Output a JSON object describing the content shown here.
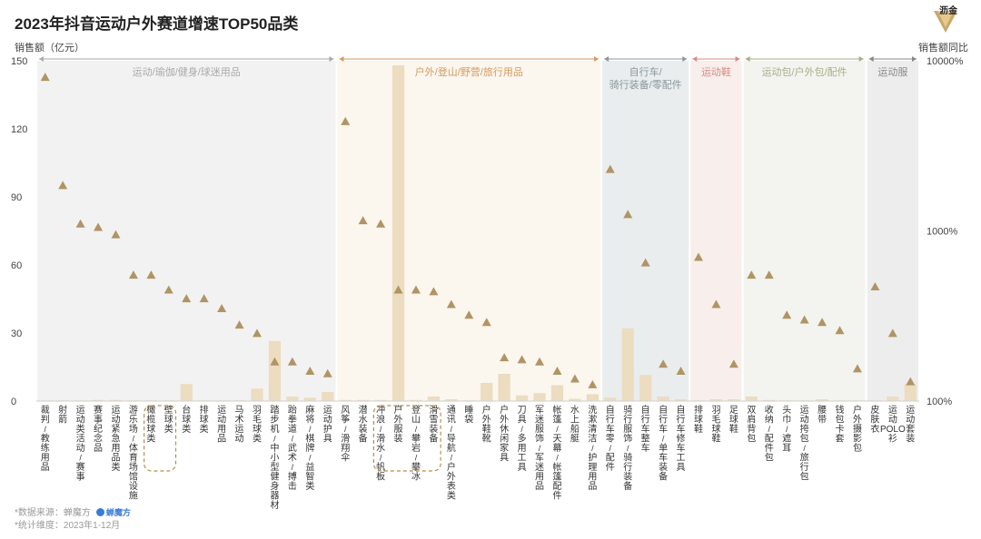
{
  "title": "2023年抖音运动户外赛道增速TOP50品类",
  "left_axis_title": "销售额（亿元）",
  "right_axis_title": "销售额同比",
  "logo_text": "沥金",
  "footer": {
    "source_label": "*数据来源：蝉魔方",
    "brand": "蝉魔方",
    "period_label": "*统计维度：2023年1-12月"
  },
  "colors": {
    "bar": "#ecdcc0",
    "marker": "#b09464",
    "group_bg": [
      "#f2f2f2",
      "#fbf6ee",
      "#eaedee",
      "#f8eeec",
      "#f3f4ef",
      "#ededed"
    ],
    "group_text": [
      "#aaaaaa",
      "#d59a5d",
      "#8a979c",
      "#d98a80",
      "#a8ad8a",
      "#888888"
    ],
    "highlight_box": "#b98c4a"
  },
  "chart_data": {
    "type": "bar",
    "categories": [
      "裁判/教练用品",
      "射箭",
      "运动类活动/赛事",
      "赛事纪念品",
      "运动紧急用品类",
      "游乐场/体育场馆设施",
      "橄榄球类",
      "壁球类",
      "台球类",
      "排球类",
      "运动用品",
      "马术运动",
      "羽毛球类",
      "踏步机/中小型健身器材",
      "跆拳道/武术/搏击",
      "麻将/棋牌/益智类",
      "运动护具",
      "风筝/滑翔伞",
      "潜水装备",
      "冲浪/滑水/帆板",
      "户外服装",
      "登山/攀岩/攀冰",
      "滑雪装备",
      "通讯/导航/户外表类",
      "睡袋",
      "户外鞋靴",
      "户外休闲家具",
      "刀具/多用工具",
      "军迷服饰/军迷用品",
      "帐篷/天幕/帐篷配件",
      "水上船艇",
      "洗漱清洁/护理用品",
      "自行车零/配件",
      "骑行服饰/骑行装备",
      "自行车整车",
      "自行车/单车装备",
      "自行车修车工具",
      "排球鞋",
      "羽毛球鞋",
      "足球鞋",
      "双肩背包",
      "收纳/配件包",
      "头巾/遮耳",
      "运动挎包/旅行包",
      "腰带",
      "钱包卡套",
      "户外摄影包",
      "皮肤衣",
      "运动POLO衫",
      "运动套装"
    ],
    "series": [
      {
        "name": "",
        "axis": "left",
        "values": [
          0.3,
          0.3,
          0.3,
          0.5,
          0.5,
          0.3,
          0.3,
          0.3,
          7.5,
          0.3,
          0.3,
          0.3,
          5.5,
          26.5,
          2,
          1.5,
          4,
          0.5,
          0.5,
          0.5,
          148,
          0.5,
          2,
          0.8,
          0.3,
          8,
          12,
          2.5,
          3.5,
          7,
          1,
          3,
          1.5,
          32,
          11.5,
          2,
          0.8,
          0.3,
          0.8,
          0.8,
          2,
          0.5,
          0.3,
          0.3,
          0.8,
          0.3,
          0.3,
          0.3,
          2,
          7.5
        ]
      },
      {
        "name": "",
        "axis": "right",
        "values": [
          8000,
          1850,
          1100,
          1050,
          950,
          550,
          550,
          450,
          400,
          400,
          350,
          280,
          250,
          170,
          170,
          150,
          145,
          4400,
          1150,
          1100,
          450,
          450,
          440,
          370,
          320,
          290,
          180,
          175,
          170,
          150,
          135,
          125,
          2300,
          1250,
          650,
          165,
          150,
          700,
          370,
          165,
          550,
          550,
          320,
          300,
          290,
          260,
          155,
          470,
          250,
          130
        ]
      }
    ],
    "ylabel": "销售额（亿元）",
    "y2label": "销售额同比",
    "ylim": [
      0,
      150
    ],
    "y_ticks": [
      0,
      30,
      60,
      90,
      120,
      150
    ],
    "y2_scale": "log",
    "y2lim": [
      100,
      10000
    ],
    "y2_ticks": [
      "100%",
      "1000%",
      "10000%"
    ],
    "groups": [
      {
        "label": "运动/瑜伽/健身/球迷用品",
        "start": 0,
        "end": 16
      },
      {
        "label": "户外/登山/野营/旅行用品",
        "start": 17,
        "end": 31
      },
      {
        "label": "自行车/骑行装备/零配件",
        "start": 32,
        "end": 36
      },
      {
        "label": "运动鞋",
        "start": 37,
        "end": 39
      },
      {
        "label": "运动包/户外包/配件",
        "start": 40,
        "end": 46
      },
      {
        "label": "运动服",
        "start": 47,
        "end": 49
      }
    ],
    "highlighted": [
      [
        6,
        7
      ],
      [
        19,
        22
      ]
    ],
    "grid": false,
    "legend": "none"
  }
}
